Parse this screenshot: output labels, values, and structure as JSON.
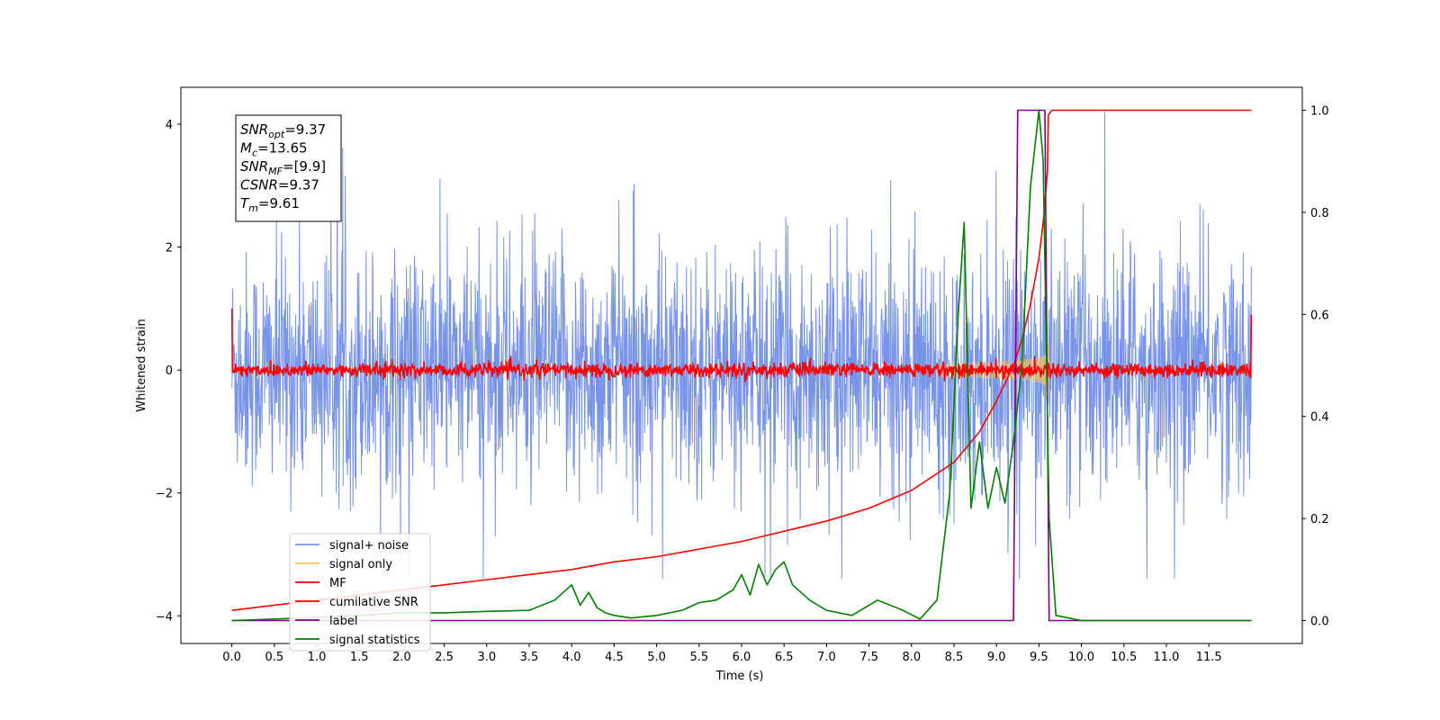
{
  "chart_data": {
    "type": "line",
    "xlabel": "Time (s)",
    "ylabel": "Whitened strain",
    "xlim": [
      -0.6,
      12.6
    ],
    "ylim": [
      -4.45,
      4.6
    ],
    "y2lim": [
      -0.045,
      1.045
    ],
    "x_ticks": [
      "0.0",
      "0.5",
      "1.0",
      "1.5",
      "2.0",
      "2.5",
      "3.0",
      "3.5",
      "4.0",
      "4.5",
      "5.0",
      "5.5",
      "6.0",
      "6.5",
      "7.0",
      "7.5",
      "8.0",
      "8.5",
      "9.0",
      "9.5",
      "10.0",
      "10.5",
      "11.0",
      "11.5"
    ],
    "y_ticks": [
      "4",
      "2",
      "0",
      "−2",
      "−4"
    ],
    "y2_ticks": [
      "1.0",
      "0.8",
      "0.6",
      "0.4",
      "0.2",
      "0.0"
    ],
    "legend_position": "lower-left",
    "annotation": {
      "snr_opt": {
        "sym": "SNR",
        "sub": "opt",
        "val": "=9.37"
      },
      "mc": {
        "sym": "M",
        "sub": "c",
        "val": "=13.65"
      },
      "snr_mf": {
        "sym": "SNR",
        "sub": "MF",
        "val": "=[9.9]"
      },
      "csnr": {
        "sym": "CSNR",
        "sub": "",
        "val": "=9.37"
      },
      "tm": {
        "sym": "T",
        "sub": "m",
        "val": "=9.61"
      }
    },
    "series": [
      {
        "name": "signal+ noise",
        "color": "#7894e8",
        "axis": "left",
        "style": "noise",
        "band_min": [
          -2.2,
          2.2
        ],
        "band_max": [
          -3.4,
          4.2
        ]
      },
      {
        "name": "signal only",
        "color": "#f6c261",
        "axis": "left",
        "style": "chirp",
        "t_merger": 9.61,
        "peak_amplitude": 0.75
      },
      {
        "name": "MF",
        "color": "#ff0000",
        "axis": "left",
        "style": "mf_noise",
        "band": [
          -0.15,
          0.15
        ],
        "edge_start": 1.0,
        "edge_end": 0.9
      },
      {
        "name": "cumilative SNR",
        "color": "#ff0000",
        "axis": "right",
        "x": [
          0.0,
          0.5,
          1.0,
          1.5,
          2.0,
          2.5,
          3.0,
          3.5,
          4.0,
          4.5,
          5.0,
          5.5,
          6.0,
          6.5,
          7.0,
          7.5,
          8.0,
          8.5,
          8.8,
          9.0,
          9.2,
          9.3,
          9.4,
          9.5,
          9.55,
          9.6,
          9.61,
          9.65,
          12.0
        ],
        "y": [
          0.02,
          0.03,
          0.04,
          0.05,
          0.06,
          0.07,
          0.08,
          0.09,
          0.1,
          0.115,
          0.125,
          0.14,
          0.155,
          0.175,
          0.195,
          0.22,
          0.255,
          0.31,
          0.37,
          0.43,
          0.5,
          0.55,
          0.62,
          0.71,
          0.78,
          0.88,
          0.99,
          1.0,
          1.0
        ]
      },
      {
        "name": "label",
        "color": "#800080",
        "axis": "right",
        "x": [
          0.0,
          9.2,
          9.25,
          9.57,
          9.62,
          12.0
        ],
        "y": [
          0.0,
          0.0,
          1.0,
          1.0,
          0.0,
          0.0
        ]
      },
      {
        "name": "signal statistics",
        "color": "#008000",
        "axis": "right",
        "x": [
          0.0,
          0.5,
          1.0,
          1.5,
          2.0,
          2.5,
          3.0,
          3.5,
          3.8,
          4.0,
          4.1,
          4.2,
          4.3,
          4.4,
          4.5,
          4.7,
          5.0,
          5.3,
          5.5,
          5.7,
          5.9,
          6.0,
          6.1,
          6.2,
          6.3,
          6.4,
          6.5,
          6.6,
          6.8,
          7.0,
          7.3,
          7.6,
          7.9,
          8.1,
          8.3,
          8.45,
          8.55,
          8.62,
          8.7,
          8.8,
          8.9,
          9.0,
          9.1,
          9.2,
          9.3,
          9.4,
          9.5,
          9.55,
          9.62,
          9.7,
          10.0,
          12.0
        ],
        "y": [
          0.0,
          0.003,
          0.006,
          0.01,
          0.015,
          0.015,
          0.018,
          0.02,
          0.04,
          0.07,
          0.03,
          0.055,
          0.025,
          0.015,
          0.01,
          0.005,
          0.01,
          0.02,
          0.035,
          0.04,
          0.06,
          0.09,
          0.05,
          0.11,
          0.07,
          0.1,
          0.115,
          0.07,
          0.04,
          0.02,
          0.01,
          0.04,
          0.02,
          0.003,
          0.04,
          0.25,
          0.6,
          0.78,
          0.22,
          0.35,
          0.22,
          0.3,
          0.23,
          0.35,
          0.5,
          0.85,
          1.0,
          0.9,
          0.2,
          0.01,
          0.0,
          0.0
        ]
      }
    ]
  }
}
